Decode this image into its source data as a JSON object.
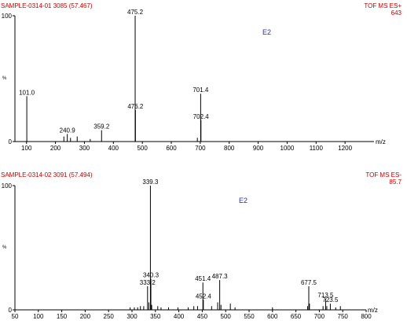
{
  "chart_data": [
    {
      "type": "bar",
      "header_left": "SAMPLE-0314-01 3085 (57.467)",
      "header_right": "TOF MS ES+",
      "base_intensity": "643",
      "function_label": "E2",
      "ylabel": "%",
      "xlabel": "m/z",
      "xlim": [
        60,
        1300
      ],
      "ylim": [
        0,
        100
      ],
      "x_ticks": [
        100,
        200,
        300,
        400,
        500,
        600,
        700,
        800,
        900,
        1000,
        1100,
        1200
      ],
      "y_ticks": [
        0,
        100
      ],
      "peaks": [
        {
          "x": 101.0,
          "y": 36,
          "label": "101.0"
        },
        {
          "x": 229,
          "y": 4
        },
        {
          "x": 240.9,
          "y": 6,
          "label": "240.9"
        },
        {
          "x": 252,
          "y": 3
        },
        {
          "x": 275,
          "y": 4
        },
        {
          "x": 320,
          "y": 2
        },
        {
          "x": 359.2,
          "y": 9,
          "label": "359.2"
        },
        {
          "x": 475.2,
          "y": 100,
          "label": "475.2"
        },
        {
          "x": 476.2,
          "y": 25,
          "label": "476.2"
        },
        {
          "x": 690,
          "y": 3
        },
        {
          "x": 701.4,
          "y": 38,
          "label": "701.4"
        },
        {
          "x": 702.4,
          "y": 17,
          "label": "702.4"
        }
      ]
    },
    {
      "type": "bar",
      "header_left": "SAMPLE-0314-02 3091 (57.494)",
      "header_right": "TOF MS ES-",
      "base_intensity": "85.7",
      "function_label": "E2",
      "ylabel": "%",
      "xlabel": "m/z",
      "xlim": [
        50,
        800
      ],
      "ylim": [
        0,
        100
      ],
      "x_ticks": [
        50,
        100,
        150,
        200,
        250,
        300,
        350,
        400,
        450,
        500,
        550,
        600,
        650,
        700,
        750,
        800
      ],
      "y_ticks": [
        0,
        100
      ],
      "peaks": [
        {
          "x": 296,
          "y": 2
        },
        {
          "x": 305,
          "y": 2
        },
        {
          "x": 312,
          "y": 2
        },
        {
          "x": 318,
          "y": 3
        },
        {
          "x": 325,
          "y": 3
        },
        {
          "x": 333.2,
          "y": 19,
          "label": "333.2"
        },
        {
          "x": 336,
          "y": 6
        },
        {
          "x": 339.3,
          "y": 100,
          "label": "339.3"
        },
        {
          "x": 340.3,
          "y": 25,
          "label": "340.3"
        },
        {
          "x": 342,
          "y": 4
        },
        {
          "x": 355,
          "y": 3
        },
        {
          "x": 362,
          "y": 2
        },
        {
          "x": 378,
          "y": 2
        },
        {
          "x": 398,
          "y": 2
        },
        {
          "x": 420,
          "y": 2
        },
        {
          "x": 432,
          "y": 3
        },
        {
          "x": 440,
          "y": 3
        },
        {
          "x": 451.4,
          "y": 22,
          "label": "451.4"
        },
        {
          "x": 452.4,
          "y": 8,
          "label": "452.4"
        },
        {
          "x": 470,
          "y": 3
        },
        {
          "x": 483,
          "y": 6
        },
        {
          "x": 487.3,
          "y": 24,
          "label": "487.3"
        },
        {
          "x": 490,
          "y": 4
        },
        {
          "x": 510,
          "y": 5
        },
        {
          "x": 520,
          "y": 2
        },
        {
          "x": 600,
          "y": 2
        },
        {
          "x": 675,
          "y": 3
        },
        {
          "x": 677.5,
          "y": 19,
          "label": "677.5"
        },
        {
          "x": 679,
          "y": 5
        },
        {
          "x": 708,
          "y": 3
        },
        {
          "x": 713.5,
          "y": 9,
          "label": "713.5"
        },
        {
          "x": 716,
          "y": 3
        },
        {
          "x": 723.5,
          "y": 5,
          "label": "723.5"
        },
        {
          "x": 735,
          "y": 2
        },
        {
          "x": 745,
          "y": 3
        }
      ]
    }
  ]
}
